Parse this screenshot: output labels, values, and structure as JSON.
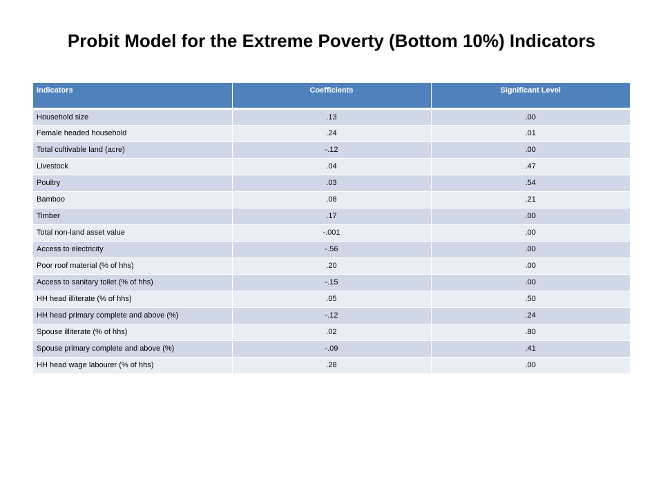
{
  "title": "Probit Model for the Extreme Poverty (Bottom 10%) Indicators",
  "table": {
    "headers": [
      "Indicators",
      "Coefficients",
      "Significant Level"
    ],
    "rows": [
      [
        "Household size",
        ".13",
        ".00"
      ],
      [
        "Female headed household",
        ".24",
        ".01"
      ],
      [
        "Total cultivable land (acre)",
        "-.12",
        ".00"
      ],
      [
        "Livestock",
        ".04",
        ".47"
      ],
      [
        "Poultry",
        ".03",
        ".54"
      ],
      [
        "Bamboo",
        ".08",
        ".21"
      ],
      [
        "Timber",
        ".17",
        ".00"
      ],
      [
        "Total non-land asset value",
        "-.001",
        ".00"
      ],
      [
        "Access to electricity",
        "-.56",
        ".00"
      ],
      [
        "Poor roof material (% of hhs)",
        ".20",
        ".00"
      ],
      [
        "Access to sanitary toilet (% of hhs)",
        "-.15",
        ".00"
      ],
      [
        "HH head illiterate (% of hhs)",
        ".05",
        ".50"
      ],
      [
        "HH head primary complete and above (%)",
        "-.12",
        ".24"
      ],
      [
        "Spouse illiterate (% of hhs)",
        ".02",
        ".80"
      ],
      [
        "Spouse primary complete and above (%)",
        "-.09",
        ".41"
      ],
      [
        "HH head wage labourer (% of hhs)",
        ".28",
        ".00"
      ]
    ]
  },
  "colors": {
    "header_bg": "#4f81bd",
    "row_odd": "#d0d8e8",
    "row_even": "#e9edf4"
  }
}
